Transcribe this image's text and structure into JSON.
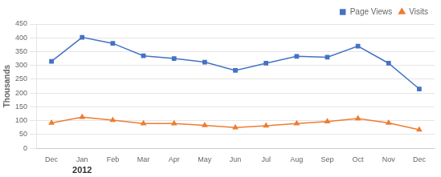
{
  "chart_data": {
    "type": "line",
    "categories": [
      "Dec",
      "Jan",
      "Feb",
      "Mar",
      "Apr",
      "May",
      "Jun",
      "Jul",
      "Aug",
      "Sep",
      "Oct",
      "Nov",
      "Dec"
    ],
    "series": [
      {
        "name": "Page Views",
        "color": "#4472C4",
        "marker": "square",
        "values": [
          315,
          402,
          380,
          335,
          325,
          312,
          282,
          308,
          333,
          330,
          370,
          308,
          215
        ]
      },
      {
        "name": "Visits",
        "color": "#ED7D31",
        "marker": "triangle",
        "values": [
          92,
          113,
          102,
          90,
          90,
          83,
          75,
          82,
          90,
          97,
          108,
          92,
          67
        ]
      }
    ],
    "ylabel": "Thousands",
    "annotations": [
      {
        "text": "2012",
        "x": "Jan"
      }
    ],
    "ylim": [
      0,
      450
    ],
    "yticks": [
      0,
      50,
      100,
      150,
      200,
      250,
      300,
      350,
      400,
      450
    ],
    "grid": "y",
    "legend": "upper right"
  }
}
